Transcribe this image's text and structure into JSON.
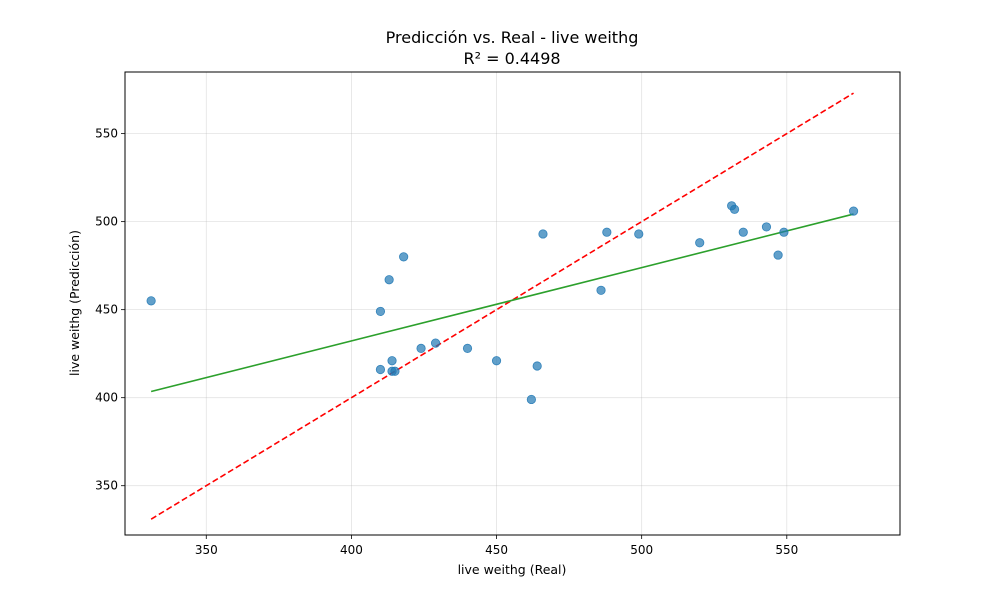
{
  "chart_data": {
    "type": "scatter",
    "title": "Predicción vs. Real - live weithg",
    "subtitle": "R² = 0.4498",
    "xlabel": "live weithg (Real)",
    "ylabel": "live weithg (Predicción)",
    "xlim": [
      322,
      589
    ],
    "ylim": [
      322,
      585
    ],
    "xticks": [
      "350",
      "400",
      "450",
      "500",
      "550"
    ],
    "yticks": [
      "350",
      "400",
      "450",
      "500",
      "550"
    ],
    "xtick_values": [
      350,
      400,
      450,
      500,
      550
    ],
    "ytick_values": [
      350,
      400,
      450,
      500,
      550
    ],
    "grid": true,
    "points": {
      "color": "#1f77b4",
      "x": [
        331,
        410,
        410,
        413,
        414,
        414,
        415,
        418,
        424,
        429,
        440,
        450,
        462,
        464,
        466,
        486,
        488,
        499,
        520,
        531,
        532,
        535,
        543,
        547,
        549,
        573
      ],
      "y": [
        455,
        449,
        416,
        467,
        421,
        415,
        415,
        480,
        428,
        431,
        428,
        421,
        399,
        418,
        493,
        461,
        494,
        493,
        488,
        509,
        507,
        494,
        497,
        481,
        494,
        506
      ]
    },
    "ideal_line": {
      "color": "#ff0000",
      "style": "dashed",
      "x": [
        331,
        573
      ],
      "y": [
        331,
        573
      ]
    },
    "fit_line": {
      "color": "#2ca02c",
      "style": "solid",
      "x": [
        331,
        573
      ],
      "y": [
        403.5,
        504.3
      ]
    }
  }
}
